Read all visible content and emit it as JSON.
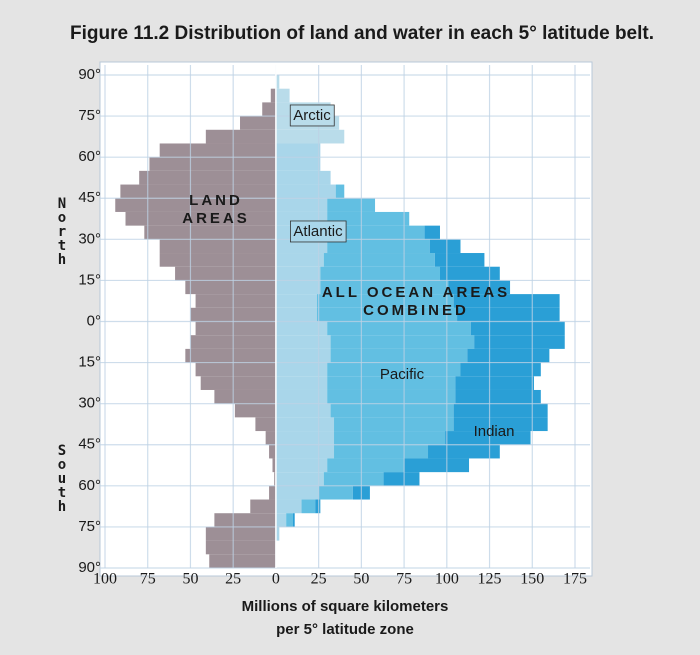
{
  "chart_data": {
    "type": "mirrored-step-histogram",
    "title": "Figure 11.2 Distribution of land and water in each 5° latitude belt.",
    "xlabel": [
      "Millions of square kilometers",
      "per 5° latitude zone"
    ],
    "side_labels": [
      "North",
      "South"
    ],
    "annotation": "ALL OCEAN AREAS COMBINED",
    "lat_bins": [
      90,
      85,
      80,
      75,
      70,
      65,
      60,
      55,
      50,
      45,
      40,
      35,
      30,
      25,
      20,
      15,
      10,
      5,
      0,
      -5,
      -10,
      -15,
      -20,
      -25,
      -30,
      -35,
      -40,
      -45,
      -50,
      -55,
      -60,
      -65,
      -70,
      -75,
      -80,
      -85,
      -90
    ],
    "land": {
      "name": "LAND AREAS",
      "color": "#9d8f96",
      "values": [
        0,
        3,
        8,
        21,
        41,
        68,
        74,
        80,
        91,
        94,
        88,
        77,
        68,
        68,
        59,
        53,
        47,
        50,
        47,
        50,
        53,
        47,
        44,
        36,
        24,
        12,
        6,
        4,
        2,
        1,
        4,
        15,
        36,
        41,
        41,
        39
      ]
    },
    "series": [
      {
        "name": "Arctic",
        "color": "#b9dcea",
        "values": [
          2,
          8,
          32,
          37,
          40,
          0,
          0,
          0,
          0,
          0,
          0,
          0,
          0,
          0,
          0,
          0,
          0,
          0,
          0,
          0,
          0,
          0,
          0,
          0,
          0,
          0,
          0,
          0,
          0,
          0,
          0,
          0,
          0,
          0,
          0,
          0
        ]
      },
      {
        "name": "Atlantic",
        "color": "#a9d6ea",
        "values": [
          0,
          0,
          0,
          0,
          0,
          26,
          26,
          32,
          35,
          30,
          30,
          32,
          30,
          28,
          26,
          26,
          24,
          24,
          30,
          32,
          32,
          30,
          30,
          30,
          32,
          34,
          34,
          34,
          30,
          28,
          25,
          15,
          6,
          2,
          0,
          0
        ]
      },
      {
        "name": "Pacific",
        "color": "#62bfe2",
        "values": [
          0,
          0,
          0,
          0,
          0,
          0,
          0,
          0,
          5,
          28,
          48,
          55,
          60,
          65,
          70,
          75,
          80,
          82,
          84,
          84,
          80,
          78,
          75,
          75,
          72,
          70,
          65,
          55,
          45,
          35,
          20,
          8,
          4,
          0,
          0,
          0
        ]
      },
      {
        "name": "Indian",
        "color": "#2a9fd6",
        "values": [
          0,
          0,
          0,
          0,
          0,
          0,
          0,
          0,
          0,
          0,
          0,
          9,
          18,
          29,
          35,
          36,
          62,
          60,
          55,
          53,
          48,
          47,
          46,
          50,
          55,
          55,
          50,
          42,
          38,
          21,
          10,
          3,
          1,
          0,
          0,
          0
        ]
      }
    ],
    "xlim": [
      -100,
      175
    ],
    "xticks": [
      {
        "value": -100,
        "label": "100"
      },
      {
        "value": -75,
        "label": "75"
      },
      {
        "value": -50,
        "label": "50"
      },
      {
        "value": -25,
        "label": "25"
      },
      0,
      25,
      50,
      75,
      100,
      125,
      150,
      175
    ],
    "ylim": [
      90,
      -90
    ],
    "yticks": [
      {
        "value": 90,
        "label": "90°"
      },
      {
        "value": 75,
        "label": "75°"
      },
      {
        "value": 60,
        "label": "60°"
      },
      {
        "value": 45,
        "label": "45°"
      },
      {
        "value": 30,
        "label": "30°"
      },
      {
        "value": 15,
        "label": "15°"
      },
      {
        "value": 0,
        "label": "0°"
      },
      {
        "value": -15,
        "label": "15°"
      },
      {
        "value": -30,
        "label": "30°"
      },
      {
        "value": -45,
        "label": "45°"
      },
      {
        "value": -60,
        "label": "60°"
      },
      {
        "value": -75,
        "label": "75°"
      },
      {
        "value": -90,
        "label": "90°"
      }
    ],
    "grid": true
  }
}
